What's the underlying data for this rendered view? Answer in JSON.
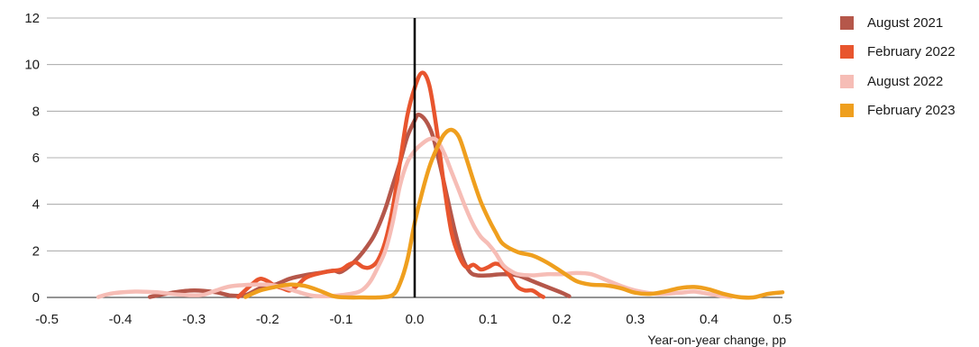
{
  "chart_data": {
    "type": "line",
    "xlabel": "Year-on-year change, pp",
    "ylabel": "",
    "xlim": [
      -0.5,
      0.5
    ],
    "ylim": [
      0,
      12
    ],
    "xticks": [
      -0.5,
      -0.4,
      -0.3,
      -0.2,
      -0.1,
      0.0,
      0.1,
      0.2,
      0.3,
      0.4,
      0.5
    ],
    "xtick_labels": [
      "-0.5",
      "-0.4",
      "-0.3",
      "-0.2",
      "-0.1",
      "0.0",
      "0.1",
      "0.2",
      "0.3",
      "0.4",
      "0.5"
    ],
    "yticks": [
      0,
      2,
      4,
      6,
      8,
      10,
      12
    ],
    "ytick_labels": [
      "0",
      "2",
      "4",
      "6",
      "8",
      "10",
      "12"
    ],
    "grid": "horizontal",
    "vertical_reference_line_x": 0,
    "legend_position": "right",
    "series": [
      {
        "name": "August 2021",
        "color": "#B5574A",
        "points": [
          [
            -0.36,
            0.02
          ],
          [
            -0.33,
            0.2
          ],
          [
            -0.3,
            0.3
          ],
          [
            -0.27,
            0.22
          ],
          [
            -0.25,
            0.08
          ],
          [
            -0.23,
            0.1
          ],
          [
            -0.21,
            0.4
          ],
          [
            -0.19,
            0.55
          ],
          [
            -0.17,
            0.8
          ],
          [
            -0.15,
            0.95
          ],
          [
            -0.13,
            1.05
          ],
          [
            -0.11,
            1.15
          ],
          [
            -0.1,
            1.1
          ],
          [
            -0.08,
            1.6
          ],
          [
            -0.06,
            2.4
          ],
          [
            -0.05,
            3.0
          ],
          [
            -0.04,
            3.8
          ],
          [
            -0.03,
            4.8
          ],
          [
            -0.02,
            5.8
          ],
          [
            -0.01,
            6.9
          ],
          [
            0.0,
            7.6
          ],
          [
            0.005,
            7.85
          ],
          [
            0.015,
            7.6
          ],
          [
            0.025,
            6.9
          ],
          [
            0.035,
            5.6
          ],
          [
            0.045,
            4.2
          ],
          [
            0.055,
            2.8
          ],
          [
            0.065,
            1.7
          ],
          [
            0.075,
            1.1
          ],
          [
            0.085,
            0.95
          ],
          [
            0.1,
            0.95
          ],
          [
            0.12,
            1.0
          ],
          [
            0.14,
            0.95
          ],
          [
            0.16,
            0.7
          ],
          [
            0.18,
            0.45
          ],
          [
            0.2,
            0.2
          ],
          [
            0.21,
            0.05
          ]
        ]
      },
      {
        "name": "February 2022",
        "color": "#E8552E",
        "points": [
          [
            -0.24,
            0.02
          ],
          [
            -0.22,
            0.6
          ],
          [
            -0.21,
            0.8
          ],
          [
            -0.2,
            0.7
          ],
          [
            -0.19,
            0.5
          ],
          [
            -0.18,
            0.4
          ],
          [
            -0.17,
            0.3
          ],
          [
            -0.16,
            0.5
          ],
          [
            -0.15,
            0.8
          ],
          [
            -0.14,
            0.95
          ],
          [
            -0.12,
            1.1
          ],
          [
            -0.1,
            1.2
          ],
          [
            -0.09,
            1.4
          ],
          [
            -0.08,
            1.5
          ],
          [
            -0.07,
            1.3
          ],
          [
            -0.06,
            1.3
          ],
          [
            -0.05,
            1.6
          ],
          [
            -0.04,
            2.4
          ],
          [
            -0.03,
            3.8
          ],
          [
            -0.02,
            5.8
          ],
          [
            -0.01,
            7.8
          ],
          [
            0.0,
            9.0
          ],
          [
            0.01,
            9.65
          ],
          [
            0.02,
            9.1
          ],
          [
            0.03,
            7.2
          ],
          [
            0.04,
            4.8
          ],
          [
            0.05,
            2.8
          ],
          [
            0.06,
            1.8
          ],
          [
            0.07,
            1.3
          ],
          [
            0.08,
            1.4
          ],
          [
            0.09,
            1.2
          ],
          [
            0.1,
            1.3
          ],
          [
            0.11,
            1.45
          ],
          [
            0.12,
            1.3
          ],
          [
            0.13,
            0.9
          ],
          [
            0.14,
            0.45
          ],
          [
            0.15,
            0.3
          ],
          [
            0.16,
            0.3
          ],
          [
            0.17,
            0.1
          ],
          [
            0.175,
            0.02
          ]
        ]
      },
      {
        "name": "August 2022",
        "color": "#F6BDB6",
        "points": [
          [
            -0.43,
            0.02
          ],
          [
            -0.41,
            0.18
          ],
          [
            -0.38,
            0.25
          ],
          [
            -0.35,
            0.22
          ],
          [
            -0.32,
            0.12
          ],
          [
            -0.29,
            0.1
          ],
          [
            -0.27,
            0.3
          ],
          [
            -0.25,
            0.48
          ],
          [
            -0.22,
            0.55
          ],
          [
            -0.2,
            0.55
          ],
          [
            -0.18,
            0.45
          ],
          [
            -0.16,
            0.25
          ],
          [
            -0.14,
            0.08
          ],
          [
            -0.12,
            0.05
          ],
          [
            -0.1,
            0.1
          ],
          [
            -0.08,
            0.2
          ],
          [
            -0.07,
            0.35
          ],
          [
            -0.06,
            0.7
          ],
          [
            -0.05,
            1.3
          ],
          [
            -0.04,
            2.0
          ],
          [
            -0.03,
            3.2
          ],
          [
            -0.02,
            4.8
          ],
          [
            -0.01,
            5.8
          ],
          [
            0.0,
            6.3
          ],
          [
            0.01,
            6.6
          ],
          [
            0.02,
            6.8
          ],
          [
            0.03,
            6.75
          ],
          [
            0.04,
            6.2
          ],
          [
            0.05,
            5.4
          ],
          [
            0.06,
            4.6
          ],
          [
            0.07,
            3.8
          ],
          [
            0.08,
            3.1
          ],
          [
            0.09,
            2.6
          ],
          [
            0.1,
            2.3
          ],
          [
            0.11,
            1.9
          ],
          [
            0.12,
            1.4
          ],
          [
            0.13,
            1.15
          ],
          [
            0.14,
            1.0
          ],
          [
            0.16,
            0.95
          ],
          [
            0.18,
            1.0
          ],
          [
            0.2,
            1.0
          ],
          [
            0.22,
            1.05
          ],
          [
            0.24,
            1.0
          ],
          [
            0.26,
            0.75
          ],
          [
            0.28,
            0.5
          ],
          [
            0.3,
            0.3
          ],
          [
            0.33,
            0.15
          ],
          [
            0.36,
            0.2
          ],
          [
            0.38,
            0.25
          ],
          [
            0.4,
            0.15
          ],
          [
            0.42,
            0.05
          ],
          [
            0.43,
            0.02
          ]
        ]
      },
      {
        "name": "February 2023",
        "color": "#EF9F1E",
        "points": [
          [
            -0.23,
            0.02
          ],
          [
            -0.21,
            0.3
          ],
          [
            -0.19,
            0.45
          ],
          [
            -0.17,
            0.55
          ],
          [
            -0.15,
            0.5
          ],
          [
            -0.13,
            0.3
          ],
          [
            -0.11,
            0.05
          ],
          [
            -0.09,
            0.0
          ],
          [
            -0.07,
            0.0
          ],
          [
            -0.05,
            0.0
          ],
          [
            -0.03,
            0.1
          ],
          [
            -0.02,
            0.6
          ],
          [
            -0.01,
            1.6
          ],
          [
            0.0,
            3.2
          ],
          [
            0.01,
            4.5
          ],
          [
            0.02,
            5.6
          ],
          [
            0.03,
            6.4
          ],
          [
            0.04,
            7.0
          ],
          [
            0.05,
            7.2
          ],
          [
            0.06,
            6.9
          ],
          [
            0.07,
            6.0
          ],
          [
            0.08,
            5.0
          ],
          [
            0.09,
            4.1
          ],
          [
            0.1,
            3.4
          ],
          [
            0.11,
            2.8
          ],
          [
            0.12,
            2.3
          ],
          [
            0.14,
            1.95
          ],
          [
            0.16,
            1.8
          ],
          [
            0.18,
            1.5
          ],
          [
            0.2,
            1.1
          ],
          [
            0.22,
            0.7
          ],
          [
            0.24,
            0.55
          ],
          [
            0.26,
            0.52
          ],
          [
            0.28,
            0.4
          ],
          [
            0.3,
            0.2
          ],
          [
            0.32,
            0.15
          ],
          [
            0.34,
            0.25
          ],
          [
            0.36,
            0.4
          ],
          [
            0.38,
            0.45
          ],
          [
            0.4,
            0.35
          ],
          [
            0.42,
            0.15
          ],
          [
            0.44,
            0.02
          ],
          [
            0.46,
            0.0
          ],
          [
            0.48,
            0.15
          ],
          [
            0.5,
            0.22
          ]
        ]
      }
    ]
  }
}
